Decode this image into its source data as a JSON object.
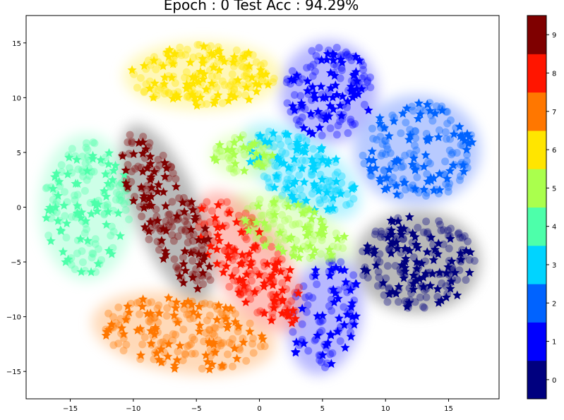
{
  "chart_data": {
    "type": "scatter",
    "title": "Epoch : 0  Test Acc : 94.29%",
    "xlim": [
      -18.5,
      19.0
    ],
    "ylim": [
      -17.5,
      17.5
    ],
    "xticks": [
      -15,
      -10,
      -5,
      0,
      5,
      10,
      15
    ],
    "yticks": [
      -15,
      -10,
      -5,
      0,
      5,
      10,
      15
    ],
    "xtick_labels": [
      "−15",
      "−10",
      "−5",
      "0",
      "5",
      "10",
      "15"
    ],
    "ytick_labels": [
      "−15",
      "−10",
      "−5",
      "0",
      "5",
      "10",
      "15"
    ],
    "grid": false,
    "colorbar": {
      "cmap": "jet",
      "labels": [
        "0",
        "1",
        "2",
        "3",
        "4",
        "5",
        "6",
        "7",
        "8",
        "9"
      ]
    },
    "marker_legend": "circles = training embeddings, stars = test samples",
    "series": [
      {
        "class": 0,
        "color": "#00007f",
        "cx": 12.5,
        "cy": -5.0,
        "rx": 4.8,
        "ry": 4.5,
        "angle": 0,
        "halo": "#808080",
        "n_circles": 120,
        "n_stars": 80
      },
      {
        "class": 1,
        "color": "#0000ff",
        "cx": 5.5,
        "cy": 10.5,
        "rx": 3.7,
        "ry": 4.5,
        "angle": 0,
        "halo": "#7f7fff",
        "n_circles": 90,
        "n_stars": 60
      },
      {
        "class": 1,
        "color": "#0000ff",
        "cx": 5.2,
        "cy": -9.8,
        "rx": 2.8,
        "ry": 5.3,
        "angle": -10,
        "halo": "#7f7fff",
        "n_circles": 60,
        "n_stars": 40
      },
      {
        "class": 2,
        "color": "#0063ff",
        "cx": 12.5,
        "cy": 5.2,
        "rx": 4.8,
        "ry": 4.8,
        "angle": 0,
        "halo": "#7f9fff",
        "n_circles": 110,
        "n_stars": 70
      },
      {
        "class": 3,
        "color": "#00d4ff",
        "cx": 3.3,
        "cy": 3.3,
        "rx": 5.2,
        "ry": 3.0,
        "angle": -35,
        "halo": "#7fe9ff",
        "n_circles": 110,
        "n_stars": 60
      },
      {
        "class": 4,
        "color": "#4dffaa",
        "cx": -13.7,
        "cy": 0.0,
        "rx": 3.6,
        "ry": 6.4,
        "angle": 0,
        "halo": "#a6ffd4",
        "n_circles": 110,
        "n_stars": 60
      },
      {
        "class": 5,
        "color": "#aaff4d",
        "cx": 2.5,
        "cy": -2.0,
        "rx": 5.0,
        "ry": 2.5,
        "angle": -25,
        "halo": "#d4ffa6",
        "n_circles": 90,
        "n_stars": 40
      },
      {
        "class": 5,
        "color": "#aaff4d",
        "cx": -1.3,
        "cy": 4.7,
        "rx": 2.5,
        "ry": 2.0,
        "angle": 0,
        "halo": "#d4ffa6",
        "n_circles": 40,
        "n_stars": 20
      },
      {
        "class": 6,
        "color": "#ffe500",
        "cx": -4.5,
        "cy": 12.0,
        "rx": 6.0,
        "ry": 3.0,
        "angle": 0,
        "halo": "#fff27f",
        "n_circles": 130,
        "n_stars": 70
      },
      {
        "class": 7,
        "color": "#ff7700",
        "cx": -6.0,
        "cy": -11.5,
        "rx": 7.0,
        "ry": 3.5,
        "angle": -8,
        "halo": "#ffbb7f",
        "n_circles": 130,
        "n_stars": 70
      },
      {
        "class": 8,
        "color": "#ff1500",
        "cx": -0.8,
        "cy": -5.0,
        "rx": 2.8,
        "ry": 7.0,
        "angle": 32,
        "halo": "#ff8a7f",
        "n_circles": 110,
        "n_stars": 70
      },
      {
        "class": 9,
        "color": "#7f0000",
        "cx": -7.3,
        "cy": -0.5,
        "rx": 2.5,
        "ry": 8.2,
        "angle": 22,
        "halo": "#808080",
        "n_circles": 110,
        "n_stars": 70
      }
    ]
  }
}
